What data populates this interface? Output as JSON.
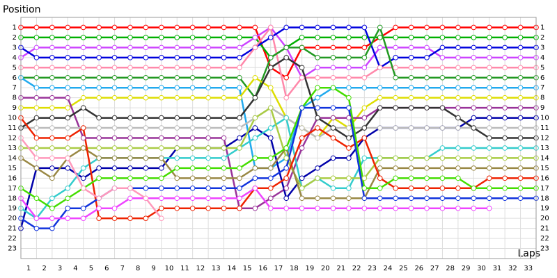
{
  "chart_data": {
    "type": "line",
    "y_label": "Position",
    "x_label": "Laps",
    "x": [
      0,
      1,
      2,
      3,
      4,
      5,
      6,
      7,
      8,
      9,
      10,
      11,
      12,
      13,
      14,
      15,
      16,
      17,
      18,
      19,
      20,
      21,
      22,
      23,
      24,
      25,
      26,
      27,
      28,
      29,
      30,
      31,
      32,
      33
    ],
    "xlim": [
      0,
      33
    ],
    "ylim": [
      24,
      0
    ],
    "grid": true,
    "xticks": [
      1,
      2,
      3,
      4,
      5,
      6,
      7,
      8,
      9,
      10,
      11,
      12,
      13,
      14,
      15,
      16,
      17,
      18,
      19,
      20,
      21,
      22,
      23,
      24,
      25,
      26,
      27,
      28,
      29,
      30,
      31,
      32,
      33
    ],
    "yticks": [
      1,
      2,
      3,
      4,
      5,
      6,
      7,
      8,
      9,
      10,
      11,
      12,
      13,
      14,
      15,
      16,
      17,
      18,
      19,
      20,
      21,
      22,
      23
    ],
    "series": [
      {
        "color": "#ff0000",
        "values": [
          1,
          1,
          1,
          1,
          1,
          1,
          1,
          1,
          1,
          1,
          1,
          1,
          1,
          1,
          1,
          1,
          5,
          6,
          3,
          3,
          3,
          3,
          3,
          2,
          1,
          1,
          1,
          1,
          1,
          1,
          1,
          1,
          1,
          1
        ]
      },
      {
        "color": "#00b000",
        "values": [
          2,
          2,
          2,
          2,
          2,
          2,
          2,
          2,
          2,
          2,
          2,
          2,
          2,
          2,
          2,
          2,
          4,
          3,
          2,
          2,
          2,
          2,
          2,
          2,
          2,
          2,
          2,
          2,
          2,
          2,
          2,
          2,
          2,
          2
        ]
      },
      {
        "color": "#cc44ff",
        "values": [
          4,
          3,
          3,
          3,
          3,
          3,
          3,
          3,
          3,
          3,
          3,
          3,
          3,
          3,
          3,
          2,
          1,
          3,
          6,
          5,
          5,
          5,
          5,
          3,
          3,
          3,
          3,
          4,
          4,
          4,
          4,
          4,
          4,
          4
        ]
      },
      {
        "color": "#0000dd",
        "values": [
          3,
          4,
          4,
          4,
          4,
          4,
          4,
          4,
          4,
          4,
          4,
          4,
          4,
          4,
          4,
          3,
          2,
          1,
          1,
          1,
          1,
          1,
          1,
          5,
          4,
          4,
          4,
          3,
          3,
          3,
          3,
          3,
          3,
          3
        ]
      },
      {
        "color": "#ff88aa",
        "values": [
          5,
          5,
          5,
          5,
          5,
          5,
          5,
          5,
          5,
          5,
          5,
          5,
          5,
          5,
          5,
          3,
          1,
          8,
          6,
          6,
          6,
          6,
          6,
          5,
          5,
          5,
          5,
          5,
          5,
          5,
          5,
          5,
          5,
          5
        ]
      },
      {
        "color": "#229922",
        "values": [
          6,
          6,
          6,
          6,
          6,
          6,
          6,
          6,
          6,
          6,
          6,
          6,
          6,
          6,
          6,
          8,
          4,
          3,
          3,
          4,
          4,
          4,
          4,
          1,
          6,
          6,
          6,
          6,
          6,
          6,
          6,
          6,
          6,
          6
        ]
      },
      {
        "color": "#22aaee",
        "values": [
          6,
          7,
          7,
          7,
          7,
          7,
          7,
          7,
          7,
          7,
          7,
          7,
          7,
          7,
          7,
          15,
          15,
          14,
          9,
          8,
          7,
          7,
          7,
          7,
          7,
          7,
          7,
          7,
          7,
          7,
          7,
          7,
          7,
          7
        ]
      },
      {
        "color": "#dddd00",
        "values": [
          9,
          9,
          9,
          9,
          8,
          8,
          8,
          8,
          8,
          8,
          8,
          8,
          8,
          8,
          8,
          6,
          7,
          10,
          11,
          12,
          10,
          11,
          9,
          8,
          8,
          8,
          8,
          8,
          8,
          8,
          8,
          8,
          8,
          8
        ]
      },
      {
        "color": "#993399",
        "values": [
          8,
          8,
          8,
          8,
          12,
          12,
          12,
          12,
          12,
          12,
          12,
          12,
          12,
          12,
          19,
          19,
          18,
          17,
          13,
          10,
          10,
          10,
          10,
          9,
          9,
          9,
          9,
          9,
          9,
          9,
          9,
          9,
          9,
          9
        ]
      },
      {
        "color": "#0000aa",
        "values": [
          21,
          15,
          15,
          15,
          16,
          15,
          15,
          15,
          15,
          15,
          13,
          13,
          13,
          13,
          12,
          11,
          12,
          18,
          16,
          15,
          14,
          14,
          12,
          11,
          11,
          11,
          11,
          11,
          11,
          10,
          10,
          10,
          10,
          10
        ]
      },
      {
        "color": "#bbbbbb",
        "values": [
          11,
          11,
          11,
          11,
          11,
          11,
          11,
          11,
          11,
          11,
          11,
          11,
          11,
          11,
          11,
          10,
          9,
          10,
          11,
          12,
          11,
          11,
          11,
          11,
          11,
          11,
          11,
          11,
          11,
          11,
          11,
          11,
          11,
          11
        ]
      },
      {
        "color": "#333333",
        "values": [
          11,
          10,
          10,
          10,
          9,
          10,
          10,
          10,
          10,
          10,
          10,
          10,
          10,
          10,
          10,
          8,
          5,
          4,
          5,
          10,
          11,
          12,
          11,
          9,
          9,
          9,
          9,
          9,
          10,
          11,
          12,
          12,
          12,
          12
        ]
      },
      {
        "color": "#33cccc",
        "values": [
          19,
          20,
          18,
          17,
          15,
          14,
          14,
          14,
          14,
          14,
          14,
          14,
          14,
          14,
          13,
          12,
          11,
          10,
          17,
          16,
          17,
          17,
          14,
          14,
          14,
          14,
          14,
          13,
          13,
          13,
          13,
          13,
          13,
          13
        ]
      },
      {
        "color": "#aacc44",
        "values": [
          13,
          13,
          13,
          13,
          13,
          13,
          13,
          13,
          13,
          13,
          13,
          13,
          13,
          13,
          13,
          10,
          9,
          14,
          17,
          16,
          16,
          16,
          16,
          14,
          14,
          14,
          14,
          14,
          14,
          14,
          14,
          14,
          14,
          14
        ]
      },
      {
        "color": "#998844",
        "values": [
          14,
          15,
          16,
          14,
          13,
          14,
          14,
          14,
          14,
          14,
          16,
          16,
          16,
          16,
          16,
          15,
          15,
          13,
          18,
          18,
          18,
          18,
          18,
          15,
          15,
          15,
          15,
          15,
          15,
          15,
          15,
          15,
          15,
          15
        ]
      },
      {
        "color": "#ee2200",
        "values": [
          10,
          12,
          12,
          12,
          11,
          20,
          20,
          20,
          20,
          19,
          19,
          19,
          19,
          19,
          19,
          17,
          17,
          16,
          12,
          11,
          12,
          13,
          12,
          16,
          17,
          17,
          17,
          17,
          17,
          17,
          16,
          16,
          16,
          16
        ]
      },
      {
        "color": "#44dd00",
        "values": [
          17,
          18,
          19,
          18,
          17,
          16,
          16,
          16,
          16,
          16,
          15,
          15,
          15,
          15,
          15,
          14,
          14,
          13,
          9,
          7,
          7,
          8,
          17,
          17,
          16,
          16,
          16,
          16,
          16,
          17,
          17,
          17,
          17,
          17
        ]
      },
      {
        "color": "#1133dd",
        "values": [
          20,
          21,
          21,
          19,
          19,
          18,
          17,
          17,
          17,
          17,
          17,
          17,
          17,
          17,
          17,
          16,
          16,
          15,
          9,
          9,
          9,
          9,
          18,
          18,
          18,
          18,
          18,
          18,
          18,
          18,
          18,
          18,
          18,
          18
        ]
      },
      {
        "color": "#ee44ff",
        "values": [
          18,
          20,
          20,
          20,
          20,
          19,
          19,
          18,
          18,
          18,
          18,
          18,
          18,
          18,
          18,
          17,
          19,
          19,
          19,
          19,
          19,
          19,
          19,
          19,
          19,
          19,
          19,
          19,
          19,
          19,
          19,
          null,
          null,
          null
        ]
      },
      {
        "color": "#ff99bb",
        "values": [
          12,
          14,
          14,
          14,
          17,
          18,
          17,
          17,
          18,
          20,
          null,
          null,
          null,
          null,
          null,
          null,
          null,
          null,
          null,
          null,
          null,
          null,
          null,
          null,
          null,
          null,
          null,
          null,
          null,
          null,
          null,
          null,
          null,
          null
        ]
      }
    ]
  }
}
